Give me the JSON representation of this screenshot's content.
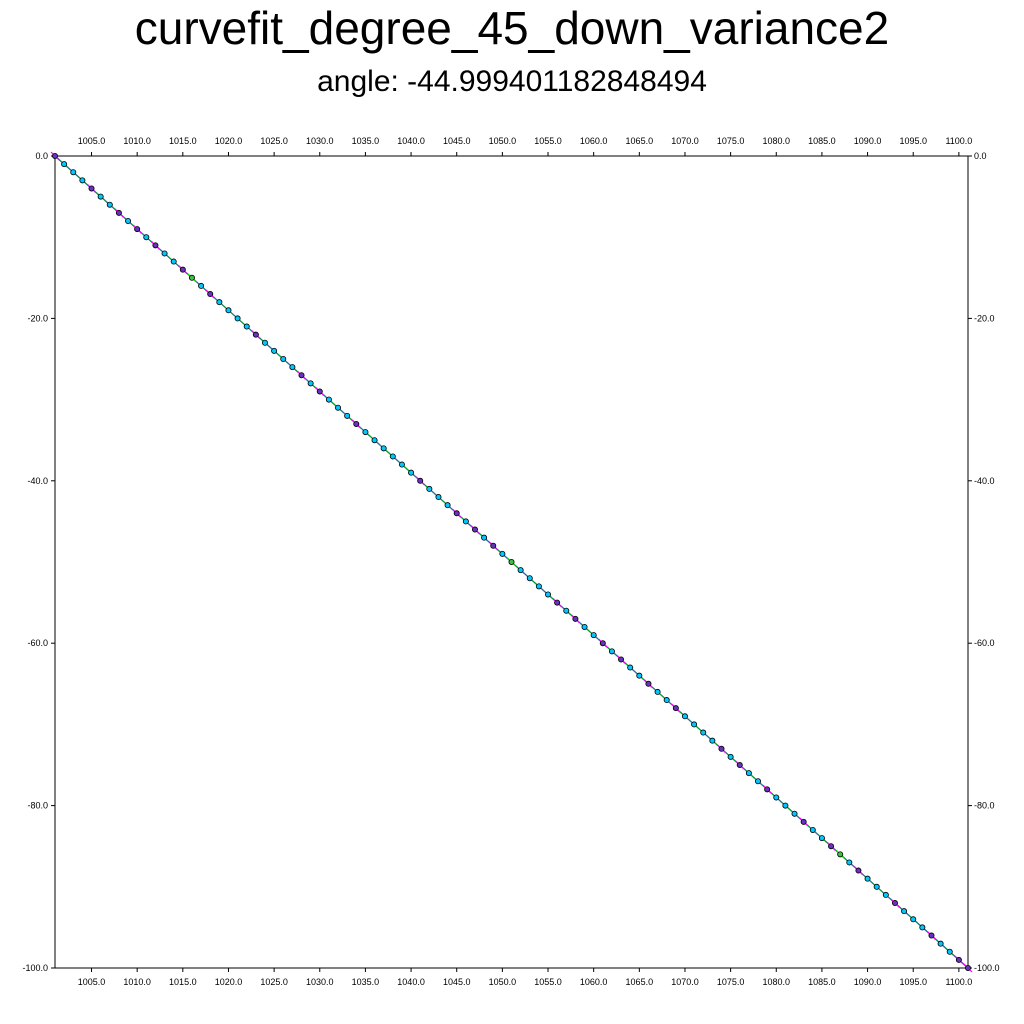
{
  "chart_data": {
    "type": "scatter",
    "title": "curvefit_degree_45_down_variance2",
    "subtitle": "angle: -44.999401182848494",
    "xlabel": "",
    "ylabel": "",
    "xlim": [
      1001.0,
      1101.0
    ],
    "ylim": [
      -100.0,
      0.0
    ],
    "x_ticks": [
      "1005.0",
      "1010.0",
      "1015.0",
      "1020.0",
      "1025.0",
      "1030.0",
      "1035.0",
      "1040.0",
      "1045.0",
      "1050.0",
      "1055.0",
      "1060.0",
      "1065.0",
      "1070.0",
      "1075.0",
      "1080.0",
      "1085.0",
      "1090.0",
      "1095.0",
      "1100.0"
    ],
    "y_ticks": [
      "0.0",
      "-20.0",
      "-40.0",
      "-60.0",
      "-80.0",
      "-100.0"
    ],
    "grid": false,
    "series": [
      {
        "kind": "fit-line",
        "color": "#0000ff",
        "x": [
          1001.0,
          1101.0
        ],
        "y": [
          0.0,
          -100.0
        ]
      },
      {
        "kind": "data-line",
        "color": "#00c000",
        "x": [
          1001.0,
          1101.0
        ],
        "y": [
          0.0,
          -100.0
        ]
      },
      {
        "kind": "points",
        "marker_fill": "#00c8ff",
        "marker_edge": "#000000",
        "x": [
          1001,
          1002,
          1003,
          1004,
          1005,
          1006,
          1007,
          1008,
          1009,
          1010,
          1011,
          1012,
          1013,
          1014,
          1015,
          1016,
          1017,
          1018,
          1019,
          1020,
          1021,
          1022,
          1023,
          1024,
          1025,
          1026,
          1027,
          1028,
          1029,
          1030,
          1031,
          1032,
          1033,
          1034,
          1035,
          1036,
          1037,
          1038,
          1039,
          1040,
          1041,
          1042,
          1043,
          1044,
          1045,
          1046,
          1047,
          1048,
          1049,
          1050,
          1051,
          1052,
          1053,
          1054,
          1055,
          1056,
          1057,
          1058,
          1059,
          1060,
          1061,
          1062,
          1063,
          1064,
          1065,
          1066,
          1067,
          1068,
          1069,
          1070,
          1071,
          1072,
          1073,
          1074,
          1075,
          1076,
          1077,
          1078,
          1079,
          1080,
          1081,
          1082,
          1083,
          1084,
          1085,
          1086,
          1087,
          1088,
          1089,
          1090,
          1091,
          1092,
          1093,
          1094,
          1095,
          1096,
          1097,
          1098,
          1099,
          1100,
          1101
        ],
        "y": [
          0,
          -1,
          -2,
          -3,
          -4,
          -5,
          -6,
          -7,
          -8,
          -9,
          -10,
          -11,
          -12,
          -13,
          -14,
          -15,
          -16,
          -17,
          -18,
          -19,
          -20,
          -21,
          -22,
          -23,
          -24,
          -25,
          -26,
          -27,
          -28,
          -29,
          -30,
          -31,
          -32,
          -33,
          -34,
          -35,
          -36,
          -37,
          -38,
          -39,
          -40,
          -41,
          -42,
          -43,
          -44,
          -45,
          -46,
          -47,
          -48,
          -49,
          -50,
          -51,
          -52,
          -53,
          -54,
          -55,
          -56,
          -57,
          -58,
          -59,
          -60,
          -61,
          -62,
          -63,
          -64,
          -65,
          -66,
          -67,
          -68,
          -69,
          -70,
          -71,
          -72,
          -73,
          -74,
          -75,
          -76,
          -77,
          -78,
          -79,
          -80,
          -81,
          -82,
          -83,
          -84,
          -85,
          -86,
          -87,
          -88,
          -89,
          -90,
          -91,
          -92,
          -93,
          -94,
          -95,
          -96,
          -97,
          -98,
          -99,
          -100
        ],
        "highlight_purple": [
          1001,
          1005,
          1008,
          1010,
          1012,
          1015,
          1018,
          1023,
          1028,
          1030,
          1034,
          1041,
          1045,
          1047,
          1049,
          1056,
          1058,
          1061,
          1063,
          1066,
          1069,
          1074,
          1076,
          1079,
          1083,
          1086,
          1089,
          1093,
          1097,
          1100,
          1101
        ],
        "highlight_green": [
          1016,
          1051,
          1087
        ]
      }
    ]
  }
}
